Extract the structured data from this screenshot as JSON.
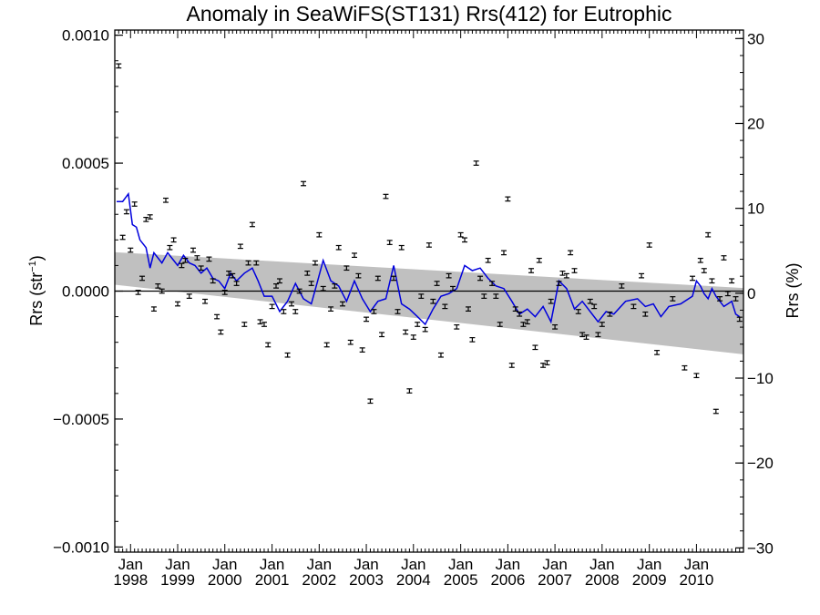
{
  "chart_data": {
    "type": "scatter",
    "title": "Anomaly in SeaWiFS(ST131) Rrs(412) for Eutrophic",
    "ylabel_left_main": "Rrs (str",
    "ylabel_left_sup": "−1",
    "ylabel_left_close": ")",
    "ylabel_right": "Rrs (%)",
    "x_range": [
      "1997-09-01",
      "2010-12-31"
    ],
    "ylim": [
      -0.00102,
      0.00102
    ],
    "ylim_right": [
      -30.5,
      31
    ],
    "x_tick_labels": [
      {
        "date": "1998-01-01",
        "top": "Jan",
        "bottom": "1998"
      },
      {
        "date": "1999-01-01",
        "top": "Jan",
        "bottom": "1999"
      },
      {
        "date": "2000-01-01",
        "top": "Jan",
        "bottom": "2000"
      },
      {
        "date": "2001-01-01",
        "top": "Jan",
        "bottom": "2001"
      },
      {
        "date": "2002-01-01",
        "top": "Jan",
        "bottom": "2002"
      },
      {
        "date": "2003-01-01",
        "top": "Jan",
        "bottom": "2003"
      },
      {
        "date": "2004-01-01",
        "top": "Jan",
        "bottom": "2004"
      },
      {
        "date": "2005-01-01",
        "top": "Jan",
        "bottom": "2005"
      },
      {
        "date": "2006-01-01",
        "top": "Jan",
        "bottom": "2006"
      },
      {
        "date": "2007-01-01",
        "top": "Jan",
        "bottom": "2007"
      },
      {
        "date": "2008-01-01",
        "top": "Jan",
        "bottom": "2008"
      },
      {
        "date": "2009-01-01",
        "top": "Jan",
        "bottom": "2009"
      },
      {
        "date": "2010-01-01",
        "top": "Jan",
        "bottom": "2010"
      }
    ],
    "y_ticks_left": [
      {
        "value": 0.001,
        "label": "0.0010"
      },
      {
        "value": 0.0005,
        "label": "0.0005"
      },
      {
        "value": 0.0,
        "label": "0.0000"
      },
      {
        "value": -0.0005,
        "label": "−0.0005"
      },
      {
        "value": -0.001,
        "label": "−0.0010"
      }
    ],
    "y_ticks_right": [
      {
        "value": 30,
        "label": "30"
      },
      {
        "value": 20,
        "label": "20"
      },
      {
        "value": 10,
        "label": "10"
      },
      {
        "value": 0,
        "label": "0"
      },
      {
        "value": -10,
        "label": "−10"
      },
      {
        "value": -20,
        "label": "−20"
      },
      {
        "value": -30,
        "label": "−30"
      }
    ],
    "zero_line": 0.0,
    "trend_band": {
      "x": [
        "1997-09-01",
        "2010-12-31"
      ],
      "upper": [
        0.000152,
        1.2e-05
      ],
      "lower": [
        2.5e-05,
        -0.000247
      ]
    },
    "error_bar_half_height": 8e-06,
    "points": {
      "x": [
        "1997-10-01",
        "1997-11-01",
        "1997-12-01",
        "1998-01-01",
        "1998-02-01",
        "1998-03-01",
        "1998-04-01",
        "1998-05-01",
        "1998-06-01",
        "1998-07-01",
        "1998-08-01",
        "1998-09-01",
        "1998-10-01",
        "1998-11-01",
        "1998-12-01",
        "1999-01-01",
        "1999-02-01",
        "1999-03-01",
        "1999-04-01",
        "1999-05-01",
        "1999-06-01",
        "1999-07-01",
        "1999-08-01",
        "1999-09-01",
        "1999-10-01",
        "1999-11-01",
        "1999-12-01",
        "2000-01-01",
        "2000-02-01",
        "2000-03-01",
        "2000-04-01",
        "2000-05-01",
        "2000-06-01",
        "2000-07-01",
        "2000-08-01",
        "2000-09-01",
        "2000-10-01",
        "2000-11-01",
        "2000-12-01",
        "2001-01-01",
        "2001-02-01",
        "2001-03-01",
        "2001-04-01",
        "2001-05-01",
        "2001-06-01",
        "2001-07-01",
        "2001-08-01",
        "2001-09-01",
        "2001-10-01",
        "2001-11-01",
        "2001-12-01",
        "2002-01-01",
        "2002-02-01",
        "2002-03-01",
        "2002-04-01",
        "2002-05-01",
        "2002-06-01",
        "2002-07-01",
        "2002-08-01",
        "2002-09-01",
        "2002-10-01",
        "2002-11-01",
        "2002-12-01",
        "2003-01-01",
        "2003-02-01",
        "2003-03-01",
        "2003-04-01",
        "2003-05-01",
        "2003-06-01",
        "2003-07-01",
        "2003-08-01",
        "2003-09-01",
        "2003-10-01",
        "2003-11-01",
        "2003-12-01",
        "2004-01-01",
        "2004-02-01",
        "2004-03-01",
        "2004-04-01",
        "2004-05-01",
        "2004-06-01",
        "2004-07-01",
        "2004-08-01",
        "2004-09-01",
        "2004-10-01",
        "2004-11-01",
        "2004-12-01",
        "2005-01-01",
        "2005-02-01",
        "2005-03-01",
        "2005-04-01",
        "2005-05-01",
        "2005-06-01",
        "2005-07-01",
        "2005-08-01",
        "2005-09-01",
        "2005-10-01",
        "2005-11-01",
        "2005-12-01",
        "2006-01-01",
        "2006-02-01",
        "2006-03-01",
        "2006-04-01",
        "2006-05-01",
        "2006-06-01",
        "2006-07-01",
        "2006-08-01",
        "2006-09-01",
        "2006-10-01",
        "2006-11-01",
        "2006-12-01",
        "2007-01-01",
        "2007-02-01",
        "2007-03-01",
        "2007-04-01",
        "2007-05-01",
        "2007-06-01",
        "2007-07-01",
        "2007-08-01",
        "2007-09-01",
        "2007-10-01",
        "2007-11-01",
        "2007-12-01",
        "2008-01-01",
        "2008-03-01",
        "2008-06-01",
        "2008-09-01",
        "2008-11-01",
        "2008-12-01",
        "2009-01-01",
        "2009-03-01",
        "2009-07-01",
        "2009-10-01",
        "2009-12-01",
        "2010-01-01",
        "2010-02-01",
        "2010-03-01",
        "2010-04-01",
        "2010-05-01",
        "2010-06-01",
        "2010-07-01",
        "2010-08-01",
        "2010-09-01",
        "2010-10-01",
        "2010-11-01",
        "2010-12-01"
      ],
      "y": [
        0.00088,
        0.00021,
        0.00031,
        0.00016,
        0.00034,
        -5e-06,
        5e-05,
        0.00028,
        0.00029,
        -7e-05,
        2e-05,
        0.0,
        0.000355,
        0.00017,
        0.0002,
        -5e-05,
        0.0001,
        0.00012,
        -2e-05,
        0.00016,
        0.00013,
        9e-05,
        -4e-05,
        0.000125,
        4e-05,
        -0.0001,
        -0.00016,
        -5e-06,
        7e-05,
        6e-05,
        3e-05,
        0.000175,
        -0.00013,
        0.00011,
        0.00026,
        0.00011,
        -0.00012,
        -0.00013,
        -0.00021,
        -6e-05,
        2e-05,
        4e-05,
        -8e-05,
        -0.00025,
        -5e-05,
        -8e-05,
        0.0,
        0.00042,
        7e-05,
        3e-05,
        0.00011,
        0.00022,
        1e-05,
        -0.00021,
        -7e-05,
        2e-05,
        0.00017,
        -5e-05,
        9e-05,
        -0.0002,
        0.00014,
        6e-05,
        -0.00023,
        -0.00011,
        -0.00043,
        -8e-05,
        5e-05,
        -0.00017,
        0.00037,
        0.00019,
        5e-05,
        -8e-05,
        0.00017,
        -0.00016,
        -0.00039,
        -0.00018,
        -0.00013,
        -2e-05,
        -0.00015,
        0.00018,
        -4e-05,
        3e-05,
        -0.00025,
        -6e-05,
        6e-05,
        1e-05,
        -0.00014,
        0.00022,
        0.0002,
        -7e-05,
        -0.00019,
        0.0005,
        5e-05,
        -2e-05,
        0.00012,
        3e-05,
        -2e-05,
        -0.00013,
        0.00015,
        0.00036,
        -0.00029,
        -7e-05,
        -9e-05,
        -0.00013,
        -0.00012,
        8e-05,
        -0.00022,
        0.00012,
        -0.00029,
        -0.00028,
        -4e-05,
        -0.00014,
        3e-05,
        7e-05,
        6e-05,
        0.00015,
        8e-05,
        -8e-05,
        -0.00017,
        -0.00018,
        -4e-05,
        -6e-05,
        -0.00017,
        -0.00013,
        -9e-05,
        2e-05,
        -6e-05,
        6e-05,
        -9e-05,
        0.00018,
        -0.00024,
        -3e-05,
        -0.0003,
        5e-05,
        -0.00033,
        0.00012,
        8e-05,
        0.00022,
        4e-05,
        -0.00047,
        -3e-05,
        0.00013,
        -1e-05,
        4e-05,
        -3e-05,
        -0.00011
      ]
    },
    "smoothed_line": {
      "color": "#0000dd",
      "x": [
        "1997-09-15",
        "1997-11-01",
        "1997-12-15",
        "1998-01-15",
        "1998-02-15",
        "1998-03-15",
        "1998-05-01",
        "1998-06-01",
        "1998-07-01",
        "1998-08-01",
        "1998-09-01",
        "1998-10-15",
        "1998-11-15",
        "1999-01-01",
        "1999-02-15",
        "1999-04-01",
        "1999-05-15",
        "1999-07-01",
        "1999-08-15",
        "1999-10-01",
        "1999-11-15",
        "2000-01-01",
        "2000-02-15",
        "2000-04-01",
        "2000-06-01",
        "2000-08-01",
        "2000-09-15",
        "2000-11-01",
        "2001-01-01",
        "2001-03-01",
        "2001-05-01",
        "2001-07-01",
        "2001-09-01",
        "2001-11-01",
        "2001-12-15",
        "2002-02-01",
        "2002-04-01",
        "2002-06-01",
        "2002-08-01",
        "2002-10-01",
        "2002-12-01",
        "2003-02-01",
        "2003-04-01",
        "2003-06-01",
        "2003-08-01",
        "2003-10-01",
        "2003-12-01",
        "2004-02-01",
        "2004-04-01",
        "2004-06-01",
        "2004-08-01",
        "2004-10-01",
        "2004-12-01",
        "2005-02-01",
        "2005-04-01",
        "2005-06-01",
        "2005-08-01",
        "2005-10-01",
        "2005-12-01",
        "2006-02-01",
        "2006-04-01",
        "2006-06-01",
        "2006-08-01",
        "2006-10-01",
        "2006-12-01",
        "2007-02-01",
        "2007-04-01",
        "2007-06-01",
        "2007-08-01",
        "2007-10-01",
        "2007-12-01",
        "2008-02-01",
        "2008-04-01",
        "2008-07-01",
        "2008-10-01",
        "2008-12-01",
        "2009-02-01",
        "2009-04-01",
        "2009-06-01",
        "2009-09-01",
        "2009-12-01",
        "2010-01-01",
        "2010-02-01",
        "2010-03-01",
        "2010-04-01",
        "2010-05-01",
        "2010-06-01",
        "2010-07-01",
        "2010-08-01",
        "2010-09-01",
        "2010-10-01",
        "2010-11-01",
        "2010-12-01"
      ],
      "y": [
        0.00035,
        0.00035,
        0.00038,
        0.00026,
        0.00025,
        0.0002,
        0.00017,
        9e-05,
        0.00015,
        0.00013,
        0.00011,
        0.00015,
        0.00013,
        0.0001,
        0.00014,
        0.00011,
        0.0001,
        7e-05,
        9e-05,
        5e-05,
        4e-05,
        1e-05,
        7e-05,
        4e-05,
        7e-05,
        9e-05,
        4e-05,
        -2e-05,
        -2e-05,
        -8e-05,
        -4e-05,
        3e-05,
        -3e-05,
        -5e-05,
        3e-05,
        0.00012,
        4e-05,
        2e-05,
        -4e-05,
        4e-05,
        -3e-05,
        -8e-05,
        -4e-05,
        -3e-05,
        0.0001,
        -5e-05,
        -7e-05,
        -0.0001,
        -0.00013,
        -7e-05,
        -2e-05,
        -1e-05,
        1e-05,
        0.0001,
        8e-05,
        9e-05,
        5e-05,
        2e-05,
        1e-05,
        -4e-05,
        -9e-05,
        -7e-05,
        -0.0001,
        -6e-05,
        -0.00012,
        4e-05,
        1e-05,
        -7e-05,
        -4e-05,
        -8e-05,
        -0.00012,
        -8e-05,
        -9e-05,
        -4e-05,
        -3e-05,
        -6e-05,
        -5e-05,
        -0.0001,
        -6e-05,
        -5e-05,
        -2e-05,
        4e-05,
        2e-05,
        -1e-05,
        -3e-05,
        1e-05,
        -2e-05,
        -4e-05,
        -6e-05,
        -5e-05,
        -4e-05,
        -9e-05,
        -0.0001
      ]
    },
    "grid": false,
    "legend": "none"
  }
}
